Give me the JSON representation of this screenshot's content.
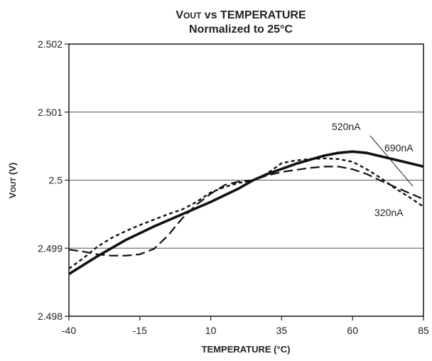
{
  "chart_data": {
    "type": "line",
    "title": "VOUT vs TEMPERATURE",
    "title_parts": {
      "main": "V",
      "subscript": "OUT",
      "rest": " vs TEMPERATURE"
    },
    "subtitle": "Normalized to 25°C",
    "xlabel": "TEMPERATURE (°C)",
    "ylabel": "VOUT (V)",
    "ylabel_parts": {
      "main": "V",
      "subscript": "OUT",
      "rest": " (V)"
    },
    "xlim": [
      -40,
      85
    ],
    "ylim": [
      2.498,
      2.502
    ],
    "x_ticks": [
      -40,
      -15,
      10,
      35,
      60,
      85
    ],
    "x_tick_labels": [
      "-40",
      "-15",
      "10",
      "35",
      "60",
      "85"
    ],
    "y_ticks": [
      2.498,
      2.499,
      2.5,
      2.501,
      2.502
    ],
    "y_tick_labels": [
      "2.498",
      "2.499",
      "2.5",
      "2.501",
      "2.502"
    ],
    "grid": "horizontal",
    "series": [
      {
        "name": "690nA",
        "style": "solid-thick",
        "color": "#111111",
        "x": [
          -40,
          -30,
          -20,
          -10,
          0,
          10,
          20,
          25,
          30,
          40,
          50,
          55,
          60,
          65,
          70,
          80,
          85
        ],
        "y": [
          2.49862,
          2.49888,
          2.49912,
          2.49932,
          2.4995,
          2.49968,
          2.49988,
          2.5,
          2.50009,
          2.50024,
          2.50036,
          2.5004,
          2.50042,
          2.5004,
          2.50035,
          2.50025,
          2.5002
        ]
      },
      {
        "name": "520nA",
        "style": "dashed-long",
        "color": "#111111",
        "x": [
          -40,
          -35,
          -30,
          -25,
          -20,
          -15,
          -10,
          -5,
          0,
          5,
          10,
          15,
          20,
          25,
          30,
          35,
          40,
          45,
          50,
          55,
          60,
          65,
          70,
          75,
          80,
          85
        ],
        "y": [
          2.49898,
          2.49895,
          2.49891,
          2.49889,
          2.49889,
          2.49891,
          2.49899,
          2.49919,
          2.49944,
          2.49964,
          2.4998,
          2.49993,
          2.49998,
          2.5,
          2.50007,
          2.50012,
          2.50015,
          2.50018,
          2.5002,
          2.5002,
          2.50016,
          2.50009,
          2.49999,
          2.4999,
          2.49981,
          2.49972
        ]
      },
      {
        "name": "320nA",
        "style": "dotted-short",
        "color": "#111111",
        "x": [
          -40,
          -35,
          -30,
          -25,
          -20,
          -15,
          -10,
          -5,
          0,
          5,
          10,
          15,
          20,
          25,
          30,
          35,
          40,
          45,
          50,
          55,
          60,
          65,
          70,
          75,
          80,
          85
        ],
        "y": [
          2.4987,
          2.49885,
          2.49902,
          2.49915,
          2.49925,
          2.49934,
          2.49942,
          2.4995,
          2.49957,
          2.49968,
          2.49982,
          2.4999,
          2.49996,
          2.5,
          2.5001,
          2.50025,
          2.50029,
          2.50031,
          2.50032,
          2.50031,
          2.50027,
          2.50016,
          2.50003,
          2.49988,
          2.49975,
          2.49961
        ]
      }
    ],
    "annotations": [
      {
        "text": "520nA",
        "series": "520nA"
      },
      {
        "text": "690nA",
        "series": "690nA"
      },
      {
        "text": "320nA",
        "series": "320nA"
      }
    ]
  }
}
